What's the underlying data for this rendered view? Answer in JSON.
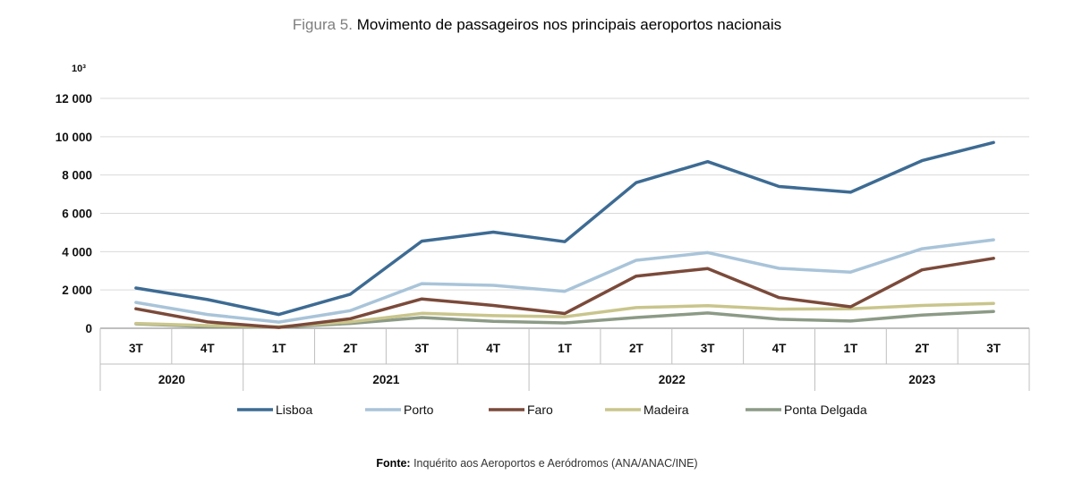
{
  "figure": {
    "title_prefix": "Figura 5.",
    "title_main": "Movimento de passageiros nos principais aeroportos nacionais",
    "source_label": "Fonte:",
    "source_text": "Inquérito aos Aeroportos e Aeródromos (ANA/ANAC/INE)"
  },
  "chart_data": {
    "type": "line",
    "unit_label": "10³",
    "title": "Movimento de passageiros nos principais aeroportos nacionais",
    "xlabel": "",
    "ylabel": "10³",
    "ylim": [
      0,
      12000
    ],
    "yticks": [
      0,
      2000,
      4000,
      6000,
      8000,
      10000,
      12000
    ],
    "ytick_labels": [
      "0",
      "2 000",
      "4 000",
      "6 000",
      "8 000",
      "10 000",
      "12 000"
    ],
    "grid": true,
    "legend_position": "bottom",
    "categories": [
      "3T",
      "4T",
      "1T",
      "2T",
      "3T",
      "4T",
      "1T",
      "2T",
      "3T",
      "4T",
      "1T",
      "2T",
      "3T"
    ],
    "years": [
      {
        "label": "2020",
        "span": 2
      },
      {
        "label": "2021",
        "span": 4
      },
      {
        "label": "2022",
        "span": 4
      },
      {
        "label": "2023",
        "span": 3
      }
    ],
    "series": [
      {
        "name": "Lisboa",
        "color": "#3D6B93",
        "values": [
          2100,
          1500,
          720,
          1780,
          4550,
          5020,
          4520,
          7600,
          8700,
          7400,
          7100,
          8750,
          9700
        ]
      },
      {
        "name": "Porto",
        "color": "#A9C4D9",
        "values": [
          1350,
          720,
          320,
          920,
          2330,
          2240,
          1930,
          3550,
          3950,
          3130,
          2930,
          4150,
          4620
        ]
      },
      {
        "name": "Faro",
        "color": "#7B4A3A",
        "values": [
          1020,
          330,
          40,
          500,
          1530,
          1190,
          770,
          2720,
          3120,
          1600,
          1120,
          3050,
          3650
        ]
      },
      {
        "name": "Madeira",
        "color": "#C9C58C",
        "values": [
          250,
          140,
          80,
          330,
          780,
          660,
          600,
          1080,
          1180,
          1000,
          1020,
          1190,
          1300
        ]
      },
      {
        "name": "Ponta Delgada",
        "color": "#8C9A86",
        "values": [
          230,
          90,
          50,
          250,
          560,
          360,
          280,
          560,
          800,
          470,
          380,
          690,
          880
        ]
      }
    ]
  }
}
